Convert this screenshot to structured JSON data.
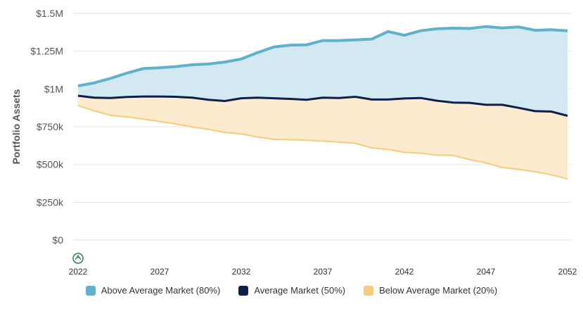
{
  "chart_data": {
    "type": "area",
    "ylabel": "Portfolio Assets",
    "xlabel": "",
    "title": "",
    "x": [
      2022,
      2023,
      2024,
      2025,
      2026,
      2027,
      2028,
      2029,
      2030,
      2031,
      2032,
      2033,
      2034,
      2035,
      2036,
      2037,
      2038,
      2039,
      2040,
      2041,
      2042,
      2043,
      2044,
      2045,
      2046,
      2047,
      2048,
      2049,
      2050,
      2051,
      2052
    ],
    "xticks": [
      2022,
      2027,
      2032,
      2037,
      2042,
      2047,
      2052
    ],
    "ylim": [
      0,
      1500000
    ],
    "yticks": [
      0,
      250000,
      500000,
      750000,
      1000000,
      1250000,
      1500000
    ],
    "ytick_labels": [
      "$0",
      "$250k",
      "$500k",
      "$750k",
      "$1M",
      "$1.25M",
      "$1.5M"
    ],
    "grid": true,
    "legend_position": "bottom",
    "series": [
      {
        "name": "Above Average Market (80%)",
        "color": "#5fb1cc",
        "fill": "#d2e9f1",
        "values": [
          1020000,
          1040000,
          1070000,
          1105000,
          1135000,
          1140000,
          1148000,
          1160000,
          1165000,
          1178000,
          1198000,
          1240000,
          1278000,
          1290000,
          1292000,
          1320000,
          1320000,
          1325000,
          1330000,
          1380000,
          1355000,
          1385000,
          1398000,
          1402000,
          1400000,
          1413000,
          1403000,
          1410000,
          1388000,
          1392000,
          1385000
        ]
      },
      {
        "name": "Average Market (50%)",
        "color": "#0d1f4a",
        "values": [
          955000,
          942000,
          940000,
          947000,
          950000,
          950000,
          948000,
          942000,
          928000,
          920000,
          938000,
          942000,
          938000,
          934000,
          928000,
          942000,
          940000,
          948000,
          930000,
          930000,
          937000,
          940000,
          922000,
          910000,
          908000,
          895000,
          895000,
          875000,
          853000,
          850000,
          822000
        ]
      },
      {
        "name": "Below Average Market (20%)",
        "color": "#f6cb7a",
        "fill": "#fdebcf",
        "values": [
          890000,
          855000,
          825000,
          815000,
          800000,
          785000,
          768000,
          748000,
          733000,
          712000,
          702000,
          682000,
          666000,
          664000,
          660000,
          655000,
          648000,
          640000,
          610000,
          600000,
          580000,
          575000,
          562000,
          560000,
          532000,
          510000,
          480000,
          468000,
          452000,
          432000,
          405000
        ]
      }
    ]
  }
}
